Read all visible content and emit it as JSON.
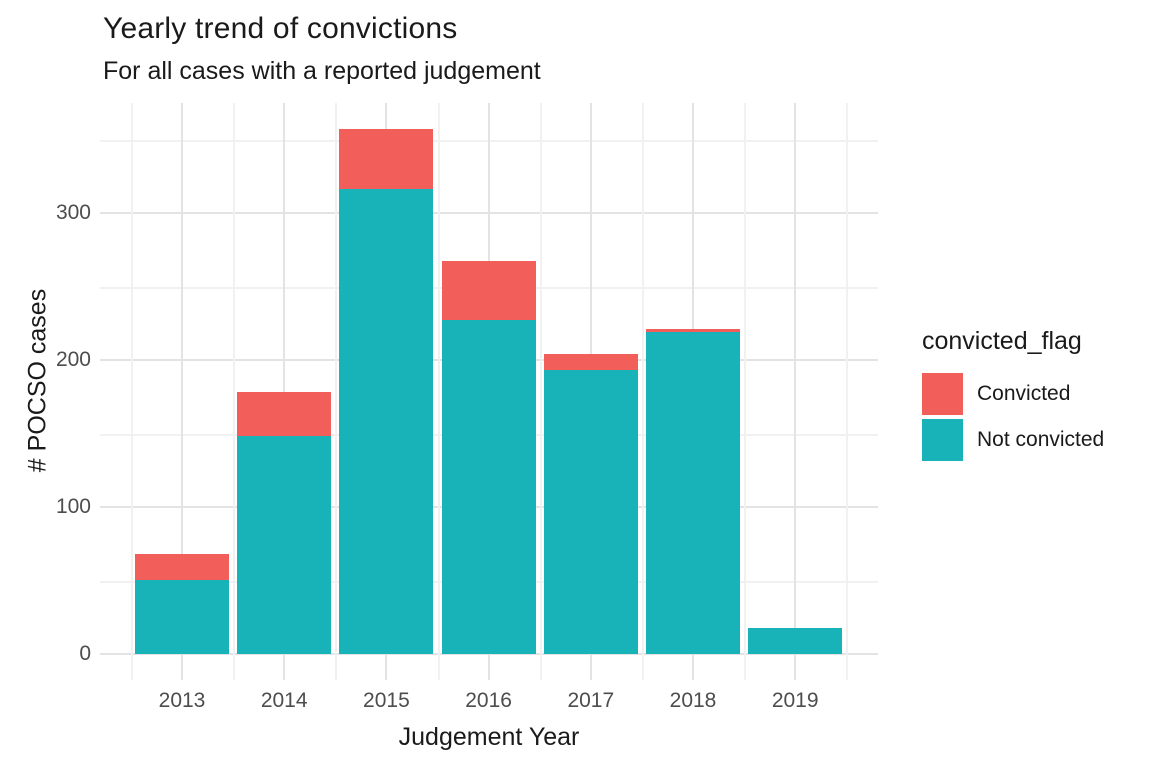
{
  "title": "Yearly trend of convictions",
  "subtitle": "For all cases with a reported judgement",
  "chart_data": {
    "type": "bar",
    "stacked": true,
    "categories": [
      "2013",
      "2014",
      "2015",
      "2016",
      "2017",
      "2018",
      "2019"
    ],
    "series": [
      {
        "name": "Convicted",
        "color": "#F25F5B",
        "values": [
          18,
          30,
          41,
          40,
          11,
          2,
          0
        ]
      },
      {
        "name": "Not convicted",
        "color": "#17B3B9",
        "values": [
          50,
          148,
          316,
          227,
          193,
          219,
          18
        ]
      }
    ],
    "totals": [
      68,
      178,
      357,
      267,
      204,
      221,
      18
    ],
    "title": "Yearly trend of convictions",
    "subtitle": "For all cases with a reported judgement",
    "xlabel": "Judgement Year",
    "ylabel": "# POCSO cases",
    "ylim": [
      0,
      375
    ],
    "yticks": [
      0,
      100,
      200,
      300
    ],
    "yticks_minor": [
      50,
      150,
      250,
      350
    ],
    "legend_title": "convicted_flag",
    "legend_position": "right",
    "grid": true,
    "background": "#ffffff"
  },
  "colors": {
    "convicted": "#F25F5B",
    "not_convicted": "#17B3B9",
    "grid_major": "#e3e3e3",
    "grid_minor": "#f1f1f1",
    "tick_text": "#4d4d4d",
    "text": "#1a1a1a"
  }
}
